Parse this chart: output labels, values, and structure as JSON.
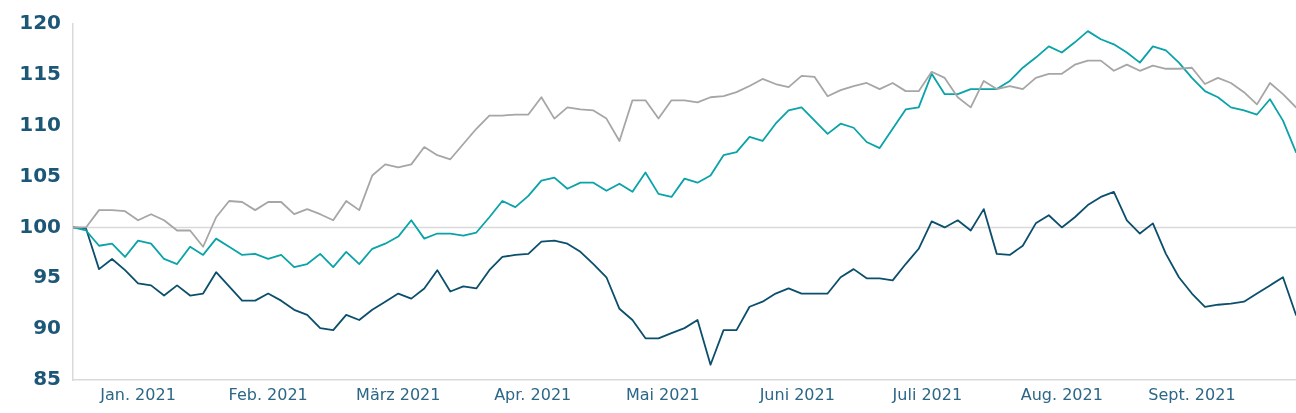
{
  "chart_data": {
    "type": "line",
    "x": [
      "2021-01-01",
      "2021-01-04",
      "2021-01-07",
      "2021-01-10",
      "2021-01-13",
      "2021-01-16",
      "2021-01-19",
      "2021-01-22",
      "2021-01-25",
      "2021-01-28",
      "2021-01-31",
      "2021-02-03",
      "2021-02-06",
      "2021-02-09",
      "2021-02-12",
      "2021-02-15",
      "2021-02-18",
      "2021-02-21",
      "2021-02-24",
      "2021-02-27",
      "2021-03-02",
      "2021-03-05",
      "2021-03-08",
      "2021-03-11",
      "2021-03-14",
      "2021-03-17",
      "2021-03-20",
      "2021-03-23",
      "2021-03-26",
      "2021-03-29",
      "2021-04-01",
      "2021-04-04",
      "2021-04-07",
      "2021-04-10",
      "2021-04-13",
      "2021-04-16",
      "2021-04-19",
      "2021-04-22",
      "2021-04-25",
      "2021-04-28",
      "2021-05-01",
      "2021-05-04",
      "2021-05-07",
      "2021-05-10",
      "2021-05-13",
      "2021-05-16",
      "2021-05-19",
      "2021-05-22",
      "2021-05-25",
      "2021-05-28",
      "2021-05-31",
      "2021-06-03",
      "2021-06-06",
      "2021-06-09",
      "2021-06-12",
      "2021-06-15",
      "2021-06-18",
      "2021-06-21",
      "2021-06-24",
      "2021-06-27",
      "2021-06-30",
      "2021-07-03",
      "2021-07-06",
      "2021-07-09",
      "2021-07-12",
      "2021-07-15",
      "2021-07-18",
      "2021-07-21",
      "2021-07-24",
      "2021-07-27",
      "2021-07-30",
      "2021-08-02",
      "2021-08-05",
      "2021-08-08",
      "2021-08-11",
      "2021-08-14",
      "2021-08-17",
      "2021-08-20",
      "2021-08-23",
      "2021-08-26",
      "2021-08-29",
      "2021-09-01",
      "2021-09-04",
      "2021-09-07",
      "2021-09-10",
      "2021-09-13",
      "2021-09-16",
      "2021-09-19",
      "2021-09-22",
      "2021-09-25",
      "2021-09-28",
      "2021-10-01",
      "2021-10-04",
      "2021-10-07",
      "2021-10-10"
    ],
    "series": [
      {
        "color": "#a6a6a6",
        "values": [
          100,
          100,
          101.7,
          101.7,
          101.6,
          100.7,
          101.3,
          100.7,
          99.7,
          99.7,
          98.1,
          101,
          102.6,
          102.5,
          101.7,
          102.5,
          102.5,
          101.3,
          101.8,
          101.3,
          100.7,
          102.6,
          101.7,
          105.1,
          106.2,
          105.9,
          106.2,
          107.9,
          107.1,
          106.7,
          108.2,
          109.7,
          111.0,
          111.0,
          111.1,
          111.1,
          112.8,
          110.7,
          111.8,
          111.6,
          111.5,
          110.7,
          108.5,
          112.5,
          112.5,
          110.7,
          112.5,
          112.5,
          112.3,
          112.8,
          112.9,
          113.3,
          113.9,
          114.6,
          114.1,
          113.8,
          114.9,
          114.8,
          112.9,
          113.5,
          113.9,
          114.2,
          113.6,
          114.2,
          113.4,
          113.4,
          115.3,
          114.7,
          112.8,
          111.8,
          114.4,
          113.6,
          113.9,
          113.6,
          114.7,
          115.1,
          115.1,
          116.0,
          116.4,
          116.4,
          115.4,
          116.0,
          115.4,
          115.9,
          115.6,
          115.6,
          115.7,
          114.1,
          114.7,
          114.2,
          113.3,
          112.1,
          114.2,
          113.1,
          111.8
        ]
      },
      {
        "color": "#0aa3a8",
        "values": [
          100,
          99.7,
          98.2,
          98.4,
          97.1,
          98.7,
          98.4,
          96.9,
          96.4,
          98.1,
          97.3,
          98.9,
          98.1,
          97.3,
          97.4,
          96.9,
          97.3,
          96.1,
          96.4,
          97.4,
          96.1,
          97.6,
          96.4,
          97.9,
          98.4,
          99.1,
          100.7,
          98.9,
          99.4,
          99.4,
          99.2,
          99.5,
          101.0,
          102.6,
          102.0,
          103.1,
          104.6,
          104.9,
          103.8,
          104.4,
          104.4,
          103.6,
          104.3,
          103.5,
          105.4,
          103.3,
          103.0,
          104.8,
          104.4,
          105.1,
          107.1,
          107.4,
          108.9,
          108.5,
          110.2,
          111.5,
          111.8,
          110.5,
          109.2,
          110.2,
          109.8,
          108.4,
          107.8,
          109.7,
          111.6,
          111.8,
          115.1,
          113.1,
          113.1,
          113.6,
          113.6,
          113.6,
          114.4,
          115.7,
          116.7,
          117.8,
          117.2,
          118.2,
          119.3,
          118.5,
          118.0,
          117.2,
          116.2,
          117.8,
          117.4,
          116.2,
          114.7,
          113.4,
          112.8,
          111.8,
          111.5,
          111.1,
          112.6,
          110.5,
          107.4
        ]
      },
      {
        "color": "#0b4f6c",
        "values": [
          100,
          99.9,
          95.9,
          96.9,
          95.8,
          94.5,
          94.3,
          93.3,
          94.3,
          93.3,
          93.5,
          95.6,
          94.2,
          92.8,
          92.8,
          93.5,
          92.8,
          91.9,
          91.4,
          90.1,
          89.9,
          91.4,
          90.9,
          91.9,
          92.7,
          93.5,
          93.0,
          94.0,
          95.8,
          93.7,
          94.2,
          94.0,
          95.8,
          97.1,
          97.3,
          97.4,
          98.6,
          98.7,
          98.4,
          97.6,
          96.4,
          95.1,
          92.0,
          90.9,
          89.1,
          89.1,
          89.6,
          90.1,
          90.9,
          86.5,
          89.9,
          89.9,
          92.2,
          92.7,
          93.5,
          94.0,
          93.5,
          93.5,
          93.5,
          95.1,
          95.9,
          95.0,
          95.0,
          94.8,
          96.4,
          97.9,
          100.6,
          100.0,
          100.7,
          99.7,
          101.8,
          97.4,
          97.3,
          98.2,
          100.4,
          101.2,
          100.0,
          101.0,
          102.2,
          103.0,
          103.5,
          100.7,
          99.4,
          100.4,
          97.4,
          95.1,
          93.5,
          92.2,
          92.4,
          92.5,
          92.7,
          93.5,
          94.3,
          95.1,
          91.4
        ]
      }
    ],
    "xlim": [
      "2021-01-01",
      "2021-10-10"
    ],
    "xticks": [
      {
        "value": "2021-01-16",
        "label": "Jan. 2021"
      },
      {
        "value": "2021-02-15",
        "label": "Feb. 2021"
      },
      {
        "value": "2021-03-17",
        "label": "März 2021"
      },
      {
        "value": "2021-04-17",
        "label": "Apr. 2021"
      },
      {
        "value": "2021-05-17",
        "label": "Mai 2021"
      },
      {
        "value": "2021-06-17",
        "label": "Juni 2021"
      },
      {
        "value": "2021-07-17",
        "label": "Juli 2021"
      },
      {
        "value": "2021-08-17",
        "label": "Aug. 2021"
      },
      {
        "value": "2021-09-16",
        "label": "Sept. 2021"
      }
    ],
    "ylim": [
      85,
      120
    ],
    "yticks": [
      85,
      90,
      95,
      100,
      105,
      110,
      115,
      120
    ],
    "ref_lines": [
      {
        "axis": "y",
        "value": 100,
        "color": "#d9d9d9"
      }
    ],
    "grid": false,
    "legend": false
  }
}
